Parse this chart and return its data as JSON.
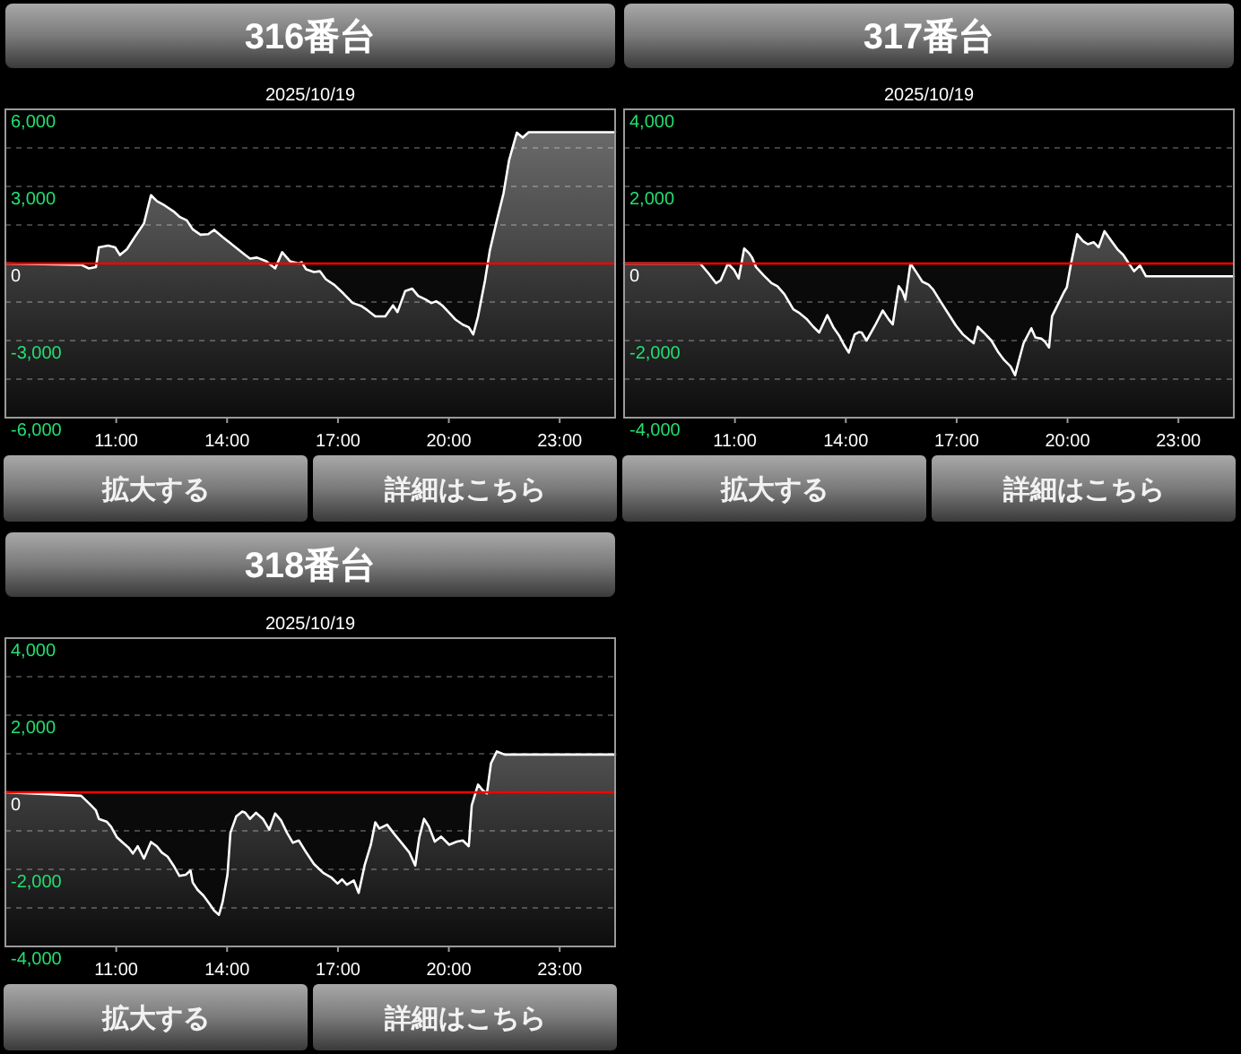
{
  "chart_data": [
    {
      "type": "area",
      "title": "316番台",
      "subtitle": "2025/10/19",
      "annotations": [
        "拡大する",
        "詳細はこちら"
      ],
      "xlim": [
        8,
        24.5
      ],
      "xticks": [
        {
          "value": 11,
          "label": "11:00"
        },
        {
          "value": 14,
          "label": "14:00"
        },
        {
          "value": 17,
          "label": "17:00"
        },
        {
          "value": 20,
          "label": "20:00"
        },
        {
          "value": 23,
          "label": "23:00"
        }
      ],
      "ylim": [
        -6000,
        6000
      ],
      "yticks": [
        {
          "value": -6000,
          "label": "-6,000"
        },
        {
          "value": -4500,
          "label": null
        },
        {
          "value": -3000,
          "label": "-3,000"
        },
        {
          "value": -1500,
          "label": null
        },
        {
          "value": 0,
          "label": "0"
        },
        {
          "value": 1500,
          "label": null
        },
        {
          "value": 3000,
          "label": "3,000"
        },
        {
          "value": 4500,
          "label": null
        },
        {
          "value": 6000,
          "label": "6,000"
        }
      ],
      "grid": "y",
      "ref_lines": [
        {
          "axis": "y",
          "value": 0,
          "color": "#ff0000"
        }
      ],
      "series": [
        {
          "color": "#ffffff",
          "x": [
            8.0,
            10.05,
            10.26,
            10.45,
            10.53,
            10.78,
            10.97,
            11.1,
            11.29,
            11.5,
            11.75,
            11.94,
            12.1,
            12.31,
            12.55,
            12.71,
            12.91,
            13.07,
            13.28,
            13.49,
            13.65,
            13.88,
            14.17,
            14.49,
            14.62,
            14.81,
            15.06,
            15.3,
            15.49,
            15.7,
            15.94,
            16.02,
            16.14,
            16.35,
            16.51,
            16.67,
            16.91,
            17.15,
            17.4,
            17.64,
            17.8,
            18.01,
            18.28,
            18.49,
            18.61,
            18.82,
            19.01,
            19.17,
            19.37,
            19.53,
            19.66,
            19.82,
            19.98,
            20.17,
            20.38,
            20.54,
            20.66,
            20.79,
            20.98,
            21.11,
            21.3,
            21.48,
            21.63,
            21.84,
            22.0,
            22.16,
            24.5
          ],
          "values": [
            0,
            -50,
            -190,
            -140,
            630,
            700,
            630,
            330,
            560,
            1030,
            1560,
            2660,
            2430,
            2260,
            2030,
            1820,
            1680,
            1330,
            1120,
            1140,
            1310,
            1030,
            700,
            330,
            190,
            230,
            90,
            -190,
            440,
            90,
            0,
            50,
            -230,
            -330,
            -300,
            -610,
            -840,
            -1170,
            -1540,
            -1660,
            -1820,
            -2060,
            -2060,
            -1630,
            -1890,
            -1070,
            -980,
            -1260,
            -1400,
            -1540,
            -1470,
            -1630,
            -1870,
            -2170,
            -2380,
            -2480,
            -2760,
            -2060,
            -650,
            510,
            1680,
            2730,
            4020,
            5090,
            4900,
            5110,
            5110
          ]
        }
      ]
    },
    {
      "type": "area",
      "title": "317番台",
      "subtitle": "2025/10/19",
      "annotations": [
        "拡大する",
        "詳細はこちら"
      ],
      "xlim": [
        8,
        24.5
      ],
      "xticks": [
        {
          "value": 11,
          "label": "11:00"
        },
        {
          "value": 14,
          "label": "14:00"
        },
        {
          "value": 17,
          "label": "17:00"
        },
        {
          "value": 20,
          "label": "20:00"
        },
        {
          "value": 23,
          "label": "23:00"
        }
      ],
      "ylim": [
        -4000,
        4000
      ],
      "yticks": [
        {
          "value": -4000,
          "label": "-4,000"
        },
        {
          "value": -3000,
          "label": null
        },
        {
          "value": -2000,
          "label": "-2,000"
        },
        {
          "value": -1000,
          "label": null
        },
        {
          "value": 0,
          "label": "0"
        },
        {
          "value": 1000,
          "label": null
        },
        {
          "value": 2000,
          "label": "2,000"
        },
        {
          "value": 3000,
          "label": null
        },
        {
          "value": 4000,
          "label": "4,000"
        }
      ],
      "grid": "y",
      "ref_lines": [
        {
          "axis": "y",
          "value": 0,
          "color": "#ff0000"
        }
      ],
      "series": [
        {
          "color": "#ffffff",
          "x": [
            8.0,
            10.06,
            10.28,
            10.49,
            10.61,
            10.81,
            10.98,
            11.1,
            11.25,
            11.38,
            11.46,
            11.57,
            11.78,
            11.99,
            12.15,
            12.34,
            12.58,
            12.75,
            12.95,
            13.12,
            13.28,
            13.5,
            13.66,
            13.82,
            13.95,
            14.08,
            14.24,
            14.35,
            14.43,
            14.56,
            14.79,
            15.0,
            15.16,
            15.27,
            15.43,
            15.53,
            15.61,
            15.75,
            15.91,
            16.07,
            16.24,
            16.36,
            16.56,
            16.72,
            16.98,
            17.17,
            17.33,
            17.46,
            17.57,
            17.73,
            17.94,
            18.13,
            18.29,
            18.46,
            18.58,
            18.7,
            18.81,
            19.02,
            19.13,
            19.29,
            19.39,
            19.5,
            19.58,
            19.74,
            19.9,
            19.98,
            20.1,
            20.26,
            20.42,
            20.55,
            20.71,
            20.84,
            21.0,
            21.19,
            21.35,
            21.51,
            21.64,
            21.8,
            21.96,
            22.12,
            24.5
          ],
          "values": [
            0,
            0,
            -250,
            -510,
            -440,
            0,
            -170,
            -390,
            390,
            270,
            160,
            -90,
            -310,
            -510,
            -590,
            -800,
            -1190,
            -1290,
            -1450,
            -1640,
            -1790,
            -1340,
            -1650,
            -1870,
            -2110,
            -2310,
            -1840,
            -1780,
            -1790,
            -2000,
            -1610,
            -1220,
            -1450,
            -1580,
            -590,
            -720,
            -940,
            0,
            -230,
            -470,
            -550,
            -670,
            -980,
            -1220,
            -1610,
            -1840,
            -1970,
            -2070,
            -1640,
            -1790,
            -2000,
            -2310,
            -2510,
            -2670,
            -2900,
            -2460,
            -2070,
            -1680,
            -1920,
            -1950,
            -2030,
            -2180,
            -1370,
            -1060,
            -750,
            -620,
            30,
            760,
            580,
            500,
            550,
            420,
            840,
            580,
            370,
            220,
            30,
            -200,
            -50,
            -330,
            -330
          ]
        }
      ]
    },
    {
      "type": "area",
      "title": "318番台",
      "subtitle": "2025/10/19",
      "annotations": [
        "拡大する",
        "詳細はこちら"
      ],
      "xlim": [
        8,
        24.5
      ],
      "xticks": [
        {
          "value": 11,
          "label": "11:00"
        },
        {
          "value": 14,
          "label": "14:00"
        },
        {
          "value": 17,
          "label": "17:00"
        },
        {
          "value": 20,
          "label": "20:00"
        },
        {
          "value": 23,
          "label": "23:00"
        }
      ],
      "ylim": [
        -4000,
        4000
      ],
      "yticks": [
        {
          "value": -4000,
          "label": "-4,000"
        },
        {
          "value": -3000,
          "label": null
        },
        {
          "value": -2000,
          "label": "-2,000"
        },
        {
          "value": -1000,
          "label": null
        },
        {
          "value": 0,
          "label": "0"
        },
        {
          "value": 1000,
          "label": null
        },
        {
          "value": 2000,
          "label": "2,000"
        },
        {
          "value": 3000,
          "label": null
        },
        {
          "value": 4000,
          "label": "4,000"
        }
      ],
      "grid": "y",
      "ref_lines": [
        {
          "axis": "y",
          "value": 0,
          "color": "#ff0000"
        }
      ],
      "series": [
        {
          "color": "#ffffff",
          "x": [
            8.0,
            10.05,
            10.29,
            10.45,
            10.53,
            10.74,
            10.86,
            11.02,
            11.18,
            11.34,
            11.45,
            11.58,
            11.75,
            11.94,
            12.1,
            12.23,
            12.39,
            12.55,
            12.71,
            12.88,
            13.01,
            13.07,
            13.2,
            13.36,
            13.52,
            13.65,
            13.78,
            13.88,
            14.01,
            14.09,
            14.25,
            14.41,
            14.49,
            14.62,
            14.78,
            14.97,
            15.14,
            15.3,
            15.46,
            15.62,
            15.78,
            15.94,
            16.14,
            16.35,
            16.6,
            16.83,
            16.99,
            17.11,
            17.24,
            17.43,
            17.56,
            17.72,
            17.89,
            18.01,
            18.12,
            18.33,
            18.53,
            18.72,
            18.93,
            19.09,
            19.2,
            19.33,
            19.46,
            19.62,
            19.79,
            20.01,
            20.22,
            20.38,
            20.54,
            20.62,
            20.79,
            20.92,
            21.03,
            21.14,
            21.3,
            21.51,
            24.5
          ],
          "values": [
            0,
            -90,
            -310,
            -470,
            -690,
            -760,
            -890,
            -1170,
            -1310,
            -1440,
            -1590,
            -1400,
            -1720,
            -1290,
            -1400,
            -1560,
            -1670,
            -1900,
            -2170,
            -2140,
            -2030,
            -2340,
            -2530,
            -2680,
            -2890,
            -3070,
            -3180,
            -2840,
            -2140,
            -1050,
            -620,
            -500,
            -530,
            -690,
            -530,
            -690,
            -970,
            -550,
            -730,
            -1050,
            -1310,
            -1250,
            -1560,
            -1860,
            -2090,
            -2220,
            -2370,
            -2260,
            -2400,
            -2290,
            -2610,
            -1900,
            -1360,
            -780,
            -940,
            -840,
            -1090,
            -1310,
            -1560,
            -1900,
            -1170,
            -690,
            -890,
            -1280,
            -1150,
            -1360,
            -1280,
            -1250,
            -1400,
            -340,
            200,
            50,
            -30,
            750,
            1060,
            980,
            980
          ]
        }
      ]
    }
  ]
}
